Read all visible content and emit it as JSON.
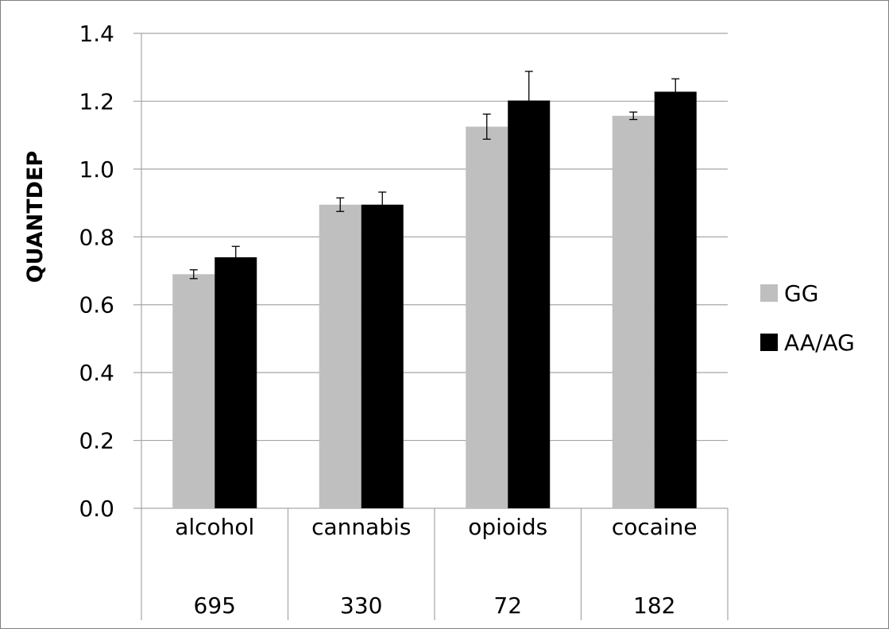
{
  "chart_data": {
    "type": "bar",
    "title": "",
    "xlabel": "",
    "ylabel": "QUANTDEP",
    "ylim": [
      0,
      1.4
    ],
    "yticks": [
      "0.0",
      "0.2",
      "0.4",
      "0.6",
      "0.8",
      "1.0",
      "1.2",
      "1.4"
    ],
    "grid": true,
    "legend_position": "right",
    "categories": [
      "alcohol",
      "cannabis",
      "opioids",
      "cocaine"
    ],
    "category_counts": [
      "695",
      "330",
      "72",
      "182"
    ],
    "series": [
      {
        "name": "GG",
        "color": "#bfbfbf",
        "values": [
          0.69,
          0.895,
          1.125,
          1.157
        ],
        "errors": [
          0.013,
          0.02,
          0.037,
          0.011
        ]
      },
      {
        "name": "AA/AG",
        "color": "#000000",
        "values": [
          0.74,
          0.895,
          1.202,
          1.228
        ],
        "errors": [
          0.032,
          0.037,
          0.086,
          0.038
        ]
      }
    ]
  }
}
